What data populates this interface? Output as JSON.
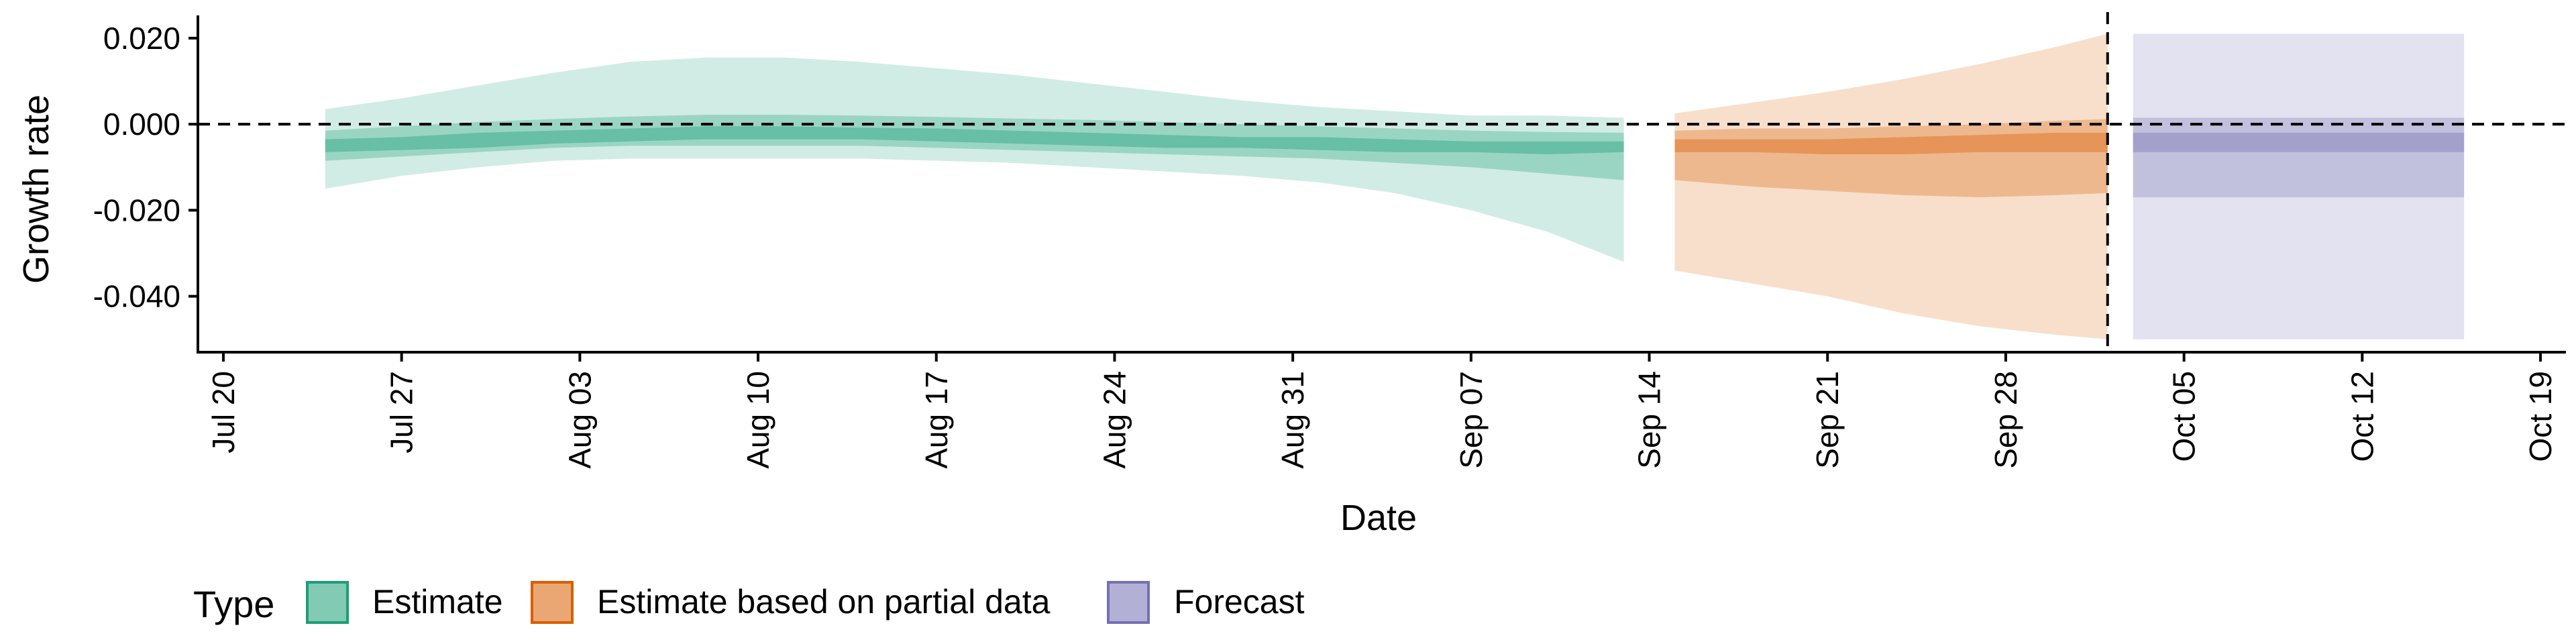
{
  "chart_data": {
    "type": "area",
    "title": "",
    "xlabel": "Date",
    "ylabel": "Growth rate",
    "x_type": "date",
    "xlim": [
      "2020-07-19",
      "2020-10-20"
    ],
    "ylim": [
      -0.053,
      0.0245
    ],
    "x_ticks": [
      "2020-07-20",
      "2020-07-27",
      "2020-08-03",
      "2020-08-10",
      "2020-08-17",
      "2020-08-24",
      "2020-08-31",
      "2020-09-07",
      "2020-09-14",
      "2020-09-21",
      "2020-09-28",
      "2020-10-05",
      "2020-10-12",
      "2020-10-19"
    ],
    "x_tick_labels": [
      "Jul 20",
      "Jul 27",
      "Aug 03",
      "Aug 10",
      "Aug 17",
      "Aug 24",
      "Aug 31",
      "Sep 07",
      "Sep 14",
      "Sep 21",
      "Sep 28",
      "Oct 05",
      "Oct 12",
      "Oct 19"
    ],
    "y_ticks": [
      0.02,
      0.0,
      -0.02,
      -0.04
    ],
    "y_tick_labels": [
      "0.020",
      "0.000",
      "-0.020",
      "-0.040"
    ],
    "hline": 0.0,
    "vline": "2020-10-02",
    "grid": false,
    "legend": {
      "title": "Type",
      "position": "bottom-left",
      "entries": [
        {
          "label": "Estimate",
          "fill": "#1b9e77",
          "stroke": "#1b9e77"
        },
        {
          "label": "Estimate based on partial data",
          "fill": "#d95f02",
          "stroke": "#d95f02"
        },
        {
          "label": "Forecast",
          "fill": "#7570b3",
          "stroke": "#7570b3"
        }
      ]
    },
    "series": [
      {
        "name": "Estimate",
        "color": "#1b9e77",
        "x": [
          "2020-07-24",
          "2020-07-27",
          "2020-07-30",
          "2020-08-02",
          "2020-08-05",
          "2020-08-08",
          "2020-08-11",
          "2020-08-14",
          "2020-08-17",
          "2020-08-20",
          "2020-08-23",
          "2020-08-26",
          "2020-08-29",
          "2020-09-01",
          "2020-09-04",
          "2020-09-07",
          "2020-09-10",
          "2020-09-13"
        ],
        "bands": [
          {
            "level": "90%",
            "lower": [
              -0.015,
              -0.012,
              -0.01,
              -0.0085,
              -0.008,
              -0.008,
              -0.008,
              -0.008,
              -0.0085,
              -0.009,
              -0.01,
              -0.011,
              -0.012,
              -0.0135,
              -0.016,
              -0.02,
              -0.025,
              -0.032
            ],
            "upper": [
              0.0035,
              0.006,
              0.009,
              0.012,
              0.0145,
              0.0155,
              0.0155,
              0.0145,
              0.013,
              0.0115,
              0.0095,
              0.0075,
              0.0055,
              0.004,
              0.003,
              0.002,
              0.002,
              0.0015
            ]
          },
          {
            "level": "50%",
            "lower": [
              -0.0085,
              -0.0075,
              -0.0065,
              -0.0055,
              -0.005,
              -0.005,
              -0.005,
              -0.005,
              -0.0055,
              -0.006,
              -0.0065,
              -0.007,
              -0.0075,
              -0.008,
              -0.009,
              -0.01,
              -0.0115,
              -0.013
            ],
            "upper": [
              -0.0015,
              -0.0005,
              0.0005,
              0.0012,
              0.0018,
              0.0022,
              0.0022,
              0.002,
              0.0017,
              0.0013,
              0.001,
              0.0005,
              0.0,
              -0.0005,
              -0.001,
              -0.0015,
              -0.0018,
              -0.002
            ]
          },
          {
            "level": "20%",
            "lower": [
              -0.0065,
              -0.006,
              -0.0055,
              -0.0045,
              -0.004,
              -0.0035,
              -0.0035,
              -0.0035,
              -0.004,
              -0.0045,
              -0.005,
              -0.0055,
              -0.0055,
              -0.006,
              -0.0065,
              -0.0065,
              -0.007,
              -0.0065
            ],
            "upper": [
              -0.0035,
              -0.003,
              -0.002,
              -0.0015,
              -0.001,
              -0.0005,
              -0.0005,
              -0.0008,
              -0.001,
              -0.0015,
              -0.002,
              -0.0025,
              -0.003,
              -0.003,
              -0.0035,
              -0.004,
              -0.004,
              -0.004
            ]
          }
        ]
      },
      {
        "name": "Estimate based on partial data",
        "color": "#d95f02",
        "x": [
          "2020-09-15",
          "2020-09-18",
          "2020-09-21",
          "2020-09-24",
          "2020-09-27",
          "2020-09-30",
          "2020-10-02"
        ],
        "bands": [
          {
            "level": "90%",
            "lower": [
              -0.034,
              -0.037,
              -0.04,
              -0.044,
              -0.047,
              -0.049,
              -0.05
            ],
            "upper": [
              0.0025,
              0.005,
              0.0075,
              0.0105,
              0.014,
              0.018,
              0.021
            ]
          },
          {
            "level": "50%",
            "lower": [
              -0.013,
              -0.0145,
              -0.0155,
              -0.0165,
              -0.017,
              -0.0165,
              -0.016
            ],
            "upper": [
              -0.0015,
              -0.001,
              -0.001,
              -0.0005,
              0.0,
              0.0008,
              0.0012
            ]
          },
          {
            "level": "20%",
            "lower": [
              -0.0065,
              -0.0065,
              -0.007,
              -0.007,
              -0.0065,
              -0.0065,
              -0.0065
            ],
            "upper": [
              -0.0035,
              -0.0035,
              -0.0035,
              -0.003,
              -0.0025,
              -0.002,
              -0.002
            ]
          }
        ]
      },
      {
        "name": "Forecast",
        "color": "#7570b3",
        "x": [
          "2020-10-03",
          "2020-10-16"
        ],
        "bands": [
          {
            "level": "90%",
            "lower": [
              -0.05,
              -0.05
            ],
            "upper": [
              0.021,
              0.021
            ]
          },
          {
            "level": "50%",
            "lower": [
              -0.017,
              -0.017
            ],
            "upper": [
              0.0015,
              0.0015
            ]
          },
          {
            "level": "20%",
            "lower": [
              -0.0065,
              -0.0065
            ],
            "upper": [
              -0.002,
              -0.002
            ]
          }
        ]
      }
    ]
  }
}
